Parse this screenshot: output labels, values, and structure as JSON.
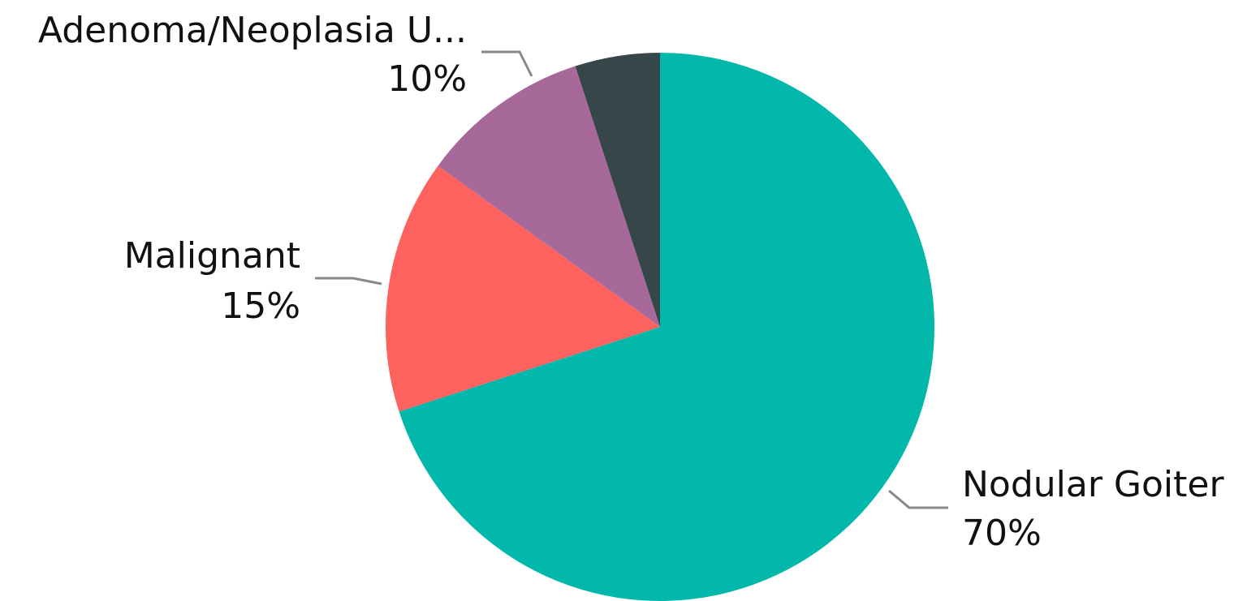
{
  "chart_data": {
    "type": "pie",
    "categories": [
      "Nodular Goiter",
      "Malignant",
      "Adenoma/Neoplasia U...",
      null
    ],
    "values": [
      70,
      15,
      10,
      5
    ],
    "value_labels": [
      "70%",
      "15%",
      "10%",
      null
    ],
    "colors": [
      "#01b8aa",
      "#fd625e",
      "#a66999",
      "#374649"
    ]
  }
}
